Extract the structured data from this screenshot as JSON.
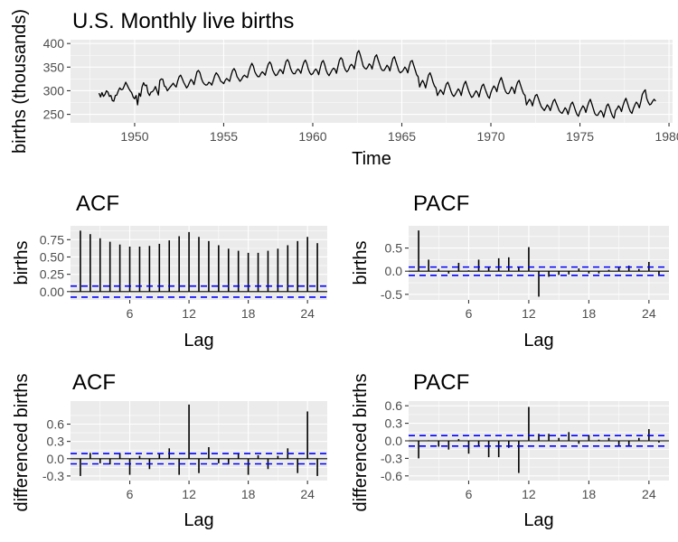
{
  "chart_data": [
    {
      "type": "line",
      "title": "U.S. Monthly live births",
      "xlabel": "Time",
      "ylabel": "births (thousands)",
      "xlim": [
        1946.4,
        1980.2
      ],
      "ylim": [
        232,
        408
      ],
      "x_ticks": [
        1950,
        1955,
        1960,
        1965,
        1970,
        1975,
        1980
      ],
      "y_ticks": [
        250,
        300,
        350,
        400
      ],
      "grid": true,
      "x_start": 1948.0,
      "x_step": 0.08333,
      "series": [
        {
          "values": [
            295,
            287,
            296,
            288,
            292,
            300,
            297,
            288,
            290,
            279,
            278,
            290,
            291,
            300,
            306,
            302,
            303,
            310,
            318,
            312,
            305,
            300,
            296,
            287,
            283,
            290,
            270,
            295,
            288,
            308,
            317,
            311,
            312,
            296,
            290,
            297,
            298,
            302,
            309,
            300,
            291,
            322,
            325,
            324,
            310,
            308,
            300,
            304,
            308,
            312,
            316,
            311,
            308,
            320,
            330,
            333,
            326,
            318,
            312,
            306,
            310,
            318,
            324,
            320,
            313,
            327,
            340,
            343,
            338,
            326,
            318,
            314,
            312,
            313,
            318,
            316,
            312,
            322,
            332,
            338,
            334,
            328,
            320,
            318,
            315,
            322,
            326,
            323,
            320,
            333,
            343,
            347,
            341,
            330,
            325,
            320,
            324,
            330,
            333,
            330,
            328,
            342,
            351,
            358,
            352,
            340,
            334,
            330,
            330,
            336,
            340,
            337,
            333,
            346,
            356,
            361,
            356,
            344,
            337,
            332,
            334,
            340,
            345,
            342,
            336,
            350,
            362,
            366,
            360,
            348,
            340,
            336,
            336,
            342,
            346,
            343,
            337,
            350,
            360,
            365,
            358,
            346,
            338,
            334,
            336,
            342,
            346,
            342,
            334,
            348,
            360,
            364,
            356,
            344,
            336,
            332,
            338,
            344,
            348,
            345,
            337,
            352,
            365,
            370,
            366,
            352,
            344,
            340,
            344,
            352,
            356,
            353,
            346,
            363,
            380,
            385,
            376,
            364,
            352,
            348,
            346,
            350,
            357,
            354,
            346,
            360,
            372,
            376,
            366,
            356,
            347,
            343,
            343,
            348,
            354,
            350,
            342,
            356,
            368,
            372,
            362,
            352,
            342,
            338,
            340,
            344,
            350,
            346,
            338,
            352,
            362,
            364,
            354,
            344,
            334,
            330,
            308,
            316,
            322,
            316,
            306,
            320,
            333,
            338,
            330,
            318,
            310,
            306,
            290,
            296,
            302,
            298,
            292,
            304,
            314,
            318,
            310,
            300,
            292,
            288,
            292,
            298,
            304,
            300,
            290,
            304,
            314,
            320,
            310,
            300,
            292,
            286,
            288,
            294,
            300,
            296,
            287,
            300,
            310,
            314,
            305,
            296,
            288,
            284,
            296,
            304,
            310,
            306,
            298,
            312,
            322,
            328,
            318,
            306,
            298,
            294,
            294,
            300,
            308,
            304,
            294,
            308,
            318,
            322,
            312,
            302,
            294,
            290,
            270,
            276,
            282,
            278,
            268,
            280,
            290,
            292,
            284,
            274,
            266,
            262,
            258,
            264,
            270,
            266,
            258,
            268,
            278,
            282,
            274,
            266,
            258,
            254,
            252,
            258,
            264,
            260,
            250,
            262,
            272,
            276,
            268,
            258,
            250,
            246,
            256,
            262,
            268,
            264,
            254,
            266,
            276,
            282,
            272,
            262,
            252,
            248,
            248,
            254,
            258,
            254,
            244,
            256,
            268,
            272,
            264,
            254,
            246,
            242,
            258,
            262,
            268,
            264,
            256,
            268,
            278,
            284,
            274,
            264,
            256,
            252,
            262,
            270,
            276,
            272,
            264,
            276,
            292,
            298,
            302,
            284,
            276,
            270,
            272,
            278,
            282,
            278
          ]
        }
      ]
    },
    {
      "type": "bar",
      "title": "ACF",
      "xlabel": "Lag",
      "ylabel": "births",
      "x": [
        1,
        2,
        3,
        4,
        5,
        6,
        7,
        8,
        9,
        10,
        11,
        12,
        13,
        14,
        15,
        16,
        17,
        18,
        19,
        20,
        21,
        22,
        23,
        24,
        25
      ],
      "values": [
        0.88,
        0.83,
        0.77,
        0.72,
        0.68,
        0.65,
        0.65,
        0.66,
        0.69,
        0.74,
        0.8,
        0.86,
        0.79,
        0.73,
        0.67,
        0.62,
        0.59,
        0.56,
        0.56,
        0.59,
        0.62,
        0.67,
        0.73,
        0.79,
        0.7
      ],
      "ci": 0.08,
      "xlim": [
        0,
        26
      ],
      "ylim": [
        -0.12,
        0.95
      ],
      "x_ticks": [
        6,
        12,
        18,
        24
      ],
      "y_ticks": [
        0.0,
        0.25,
        0.5,
        0.75
      ],
      "y_tick_labels": [
        "0.00",
        "0.25",
        "0.50",
        "0.75"
      ]
    },
    {
      "type": "bar",
      "title": "PACF",
      "xlabel": "Lag",
      "ylabel": "births",
      "x": [
        1,
        2,
        3,
        4,
        5,
        6,
        7,
        8,
        9,
        10,
        11,
        12,
        13,
        14,
        15,
        16,
        17,
        18,
        19,
        20,
        21,
        22,
        23,
        24,
        25
      ],
      "values": [
        0.88,
        0.25,
        0.05,
        -0.05,
        0.18,
        0.02,
        0.25,
        0.1,
        0.28,
        0.3,
        0.1,
        0.52,
        -0.55,
        -0.12,
        -0.08,
        -0.07,
        0.06,
        -0.05,
        -0.05,
        0.03,
        0.1,
        0.12,
        0.05,
        0.2,
        -0.08
      ],
      "ci": 0.09,
      "xlim": [
        0,
        26
      ],
      "ylim": [
        -0.62,
        0.98
      ],
      "x_ticks": [
        6,
        12,
        18,
        24
      ],
      "y_ticks": [
        -0.5,
        0.0,
        0.5
      ],
      "y_tick_labels": [
        "-0.5",
        "0.0",
        "0.5"
      ]
    },
    {
      "type": "bar",
      "title": "ACF",
      "xlabel": "Lag",
      "ylabel": "differenced births",
      "x": [
        1,
        2,
        3,
        4,
        5,
        6,
        7,
        8,
        9,
        10,
        11,
        12,
        13,
        14,
        15,
        16,
        17,
        18,
        19,
        20,
        21,
        22,
        23,
        24,
        25
      ],
      "values": [
        -0.3,
        0.1,
        -0.08,
        -0.1,
        0.1,
        -0.28,
        0.05,
        -0.18,
        0.08,
        0.18,
        -0.28,
        0.94,
        -0.25,
        0.2,
        -0.08,
        -0.1,
        0.1,
        -0.28,
        0.06,
        -0.18,
        0.05,
        0.18,
        -0.25,
        0.82,
        -0.3
      ],
      "ci": 0.09,
      "xlim": [
        0,
        26
      ],
      "ylim": [
        -0.38,
        1.0
      ],
      "x_ticks": [
        6,
        12,
        18,
        24
      ],
      "y_ticks": [
        -0.3,
        0.0,
        0.3,
        0.6
      ],
      "y_tick_labels": [
        "-0.3",
        "0.0",
        "0.3",
        "0.6"
      ]
    },
    {
      "type": "bar",
      "title": "PACF",
      "xlabel": "Lag",
      "ylabel": "differenced births",
      "x": [
        1,
        2,
        3,
        4,
        5,
        6,
        7,
        8,
        9,
        10,
        11,
        12,
        13,
        14,
        15,
        16,
        17,
        18,
        19,
        20,
        21,
        22,
        23,
        24,
        25
      ],
      "values": [
        -0.3,
        0.01,
        -0.1,
        -0.15,
        0.03,
        -0.22,
        -0.1,
        -0.28,
        -0.28,
        -0.12,
        -0.55,
        0.58,
        0.12,
        0.12,
        0.05,
        0.15,
        -0.05,
        0.1,
        0.02,
        0.05,
        -0.08,
        -0.1,
        0.05,
        0.2,
        -0.03
      ],
      "ci": 0.09,
      "xlim": [
        0,
        26
      ],
      "ylim": [
        -0.68,
        0.68
      ],
      "x_ticks": [
        6,
        12,
        18,
        24
      ],
      "y_ticks": [
        -0.6,
        -0.3,
        0.0,
        0.3,
        0.6
      ],
      "y_tick_labels": [
        "-0.6",
        "-0.3",
        "0.0",
        "0.3",
        "0.6"
      ]
    }
  ],
  "colors": {
    "panel_background": "#ebebeb",
    "grid": "#ffffff",
    "line": "#000000",
    "ci_line": "#0000ff",
    "tick_label": "#4d4d4d"
  }
}
